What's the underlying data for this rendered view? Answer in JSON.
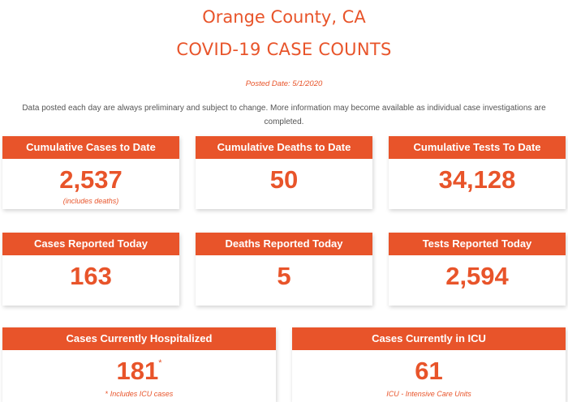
{
  "header": {
    "location": "Orange County, CA",
    "title": "COVID-19 CASE COUNTS",
    "posted_date": "Posted Date: 5/1/2020",
    "disclaimer": "Data posted each day are always preliminary and subject to change. More information may become available as individual case investigations are completed."
  },
  "cards": {
    "cumulative_cases": {
      "label": "Cumulative Cases to Date",
      "value": "2,537",
      "note": "(includes deaths)"
    },
    "cumulative_deaths": {
      "label": "Cumulative Deaths to Date",
      "value": "50"
    },
    "cumulative_tests": {
      "label": "Cumulative Tests To Date",
      "value": "34,128"
    },
    "cases_today": {
      "label": "Cases Reported Today",
      "value": "163"
    },
    "deaths_today": {
      "label": "Deaths Reported Today",
      "value": "5"
    },
    "tests_today": {
      "label": "Tests Reported Today",
      "value": "2,594"
    },
    "hospitalized": {
      "label": "Cases Currently Hospitalized",
      "value": "181",
      "marker": "*",
      "note": "Includes ICU cases"
    },
    "icu": {
      "label": "Cases Currently in ICU",
      "value": "61",
      "note": "ICU - Intensive Care Units"
    }
  },
  "colors": {
    "accent": "#e8542a",
    "text_gray": "#555555"
  }
}
